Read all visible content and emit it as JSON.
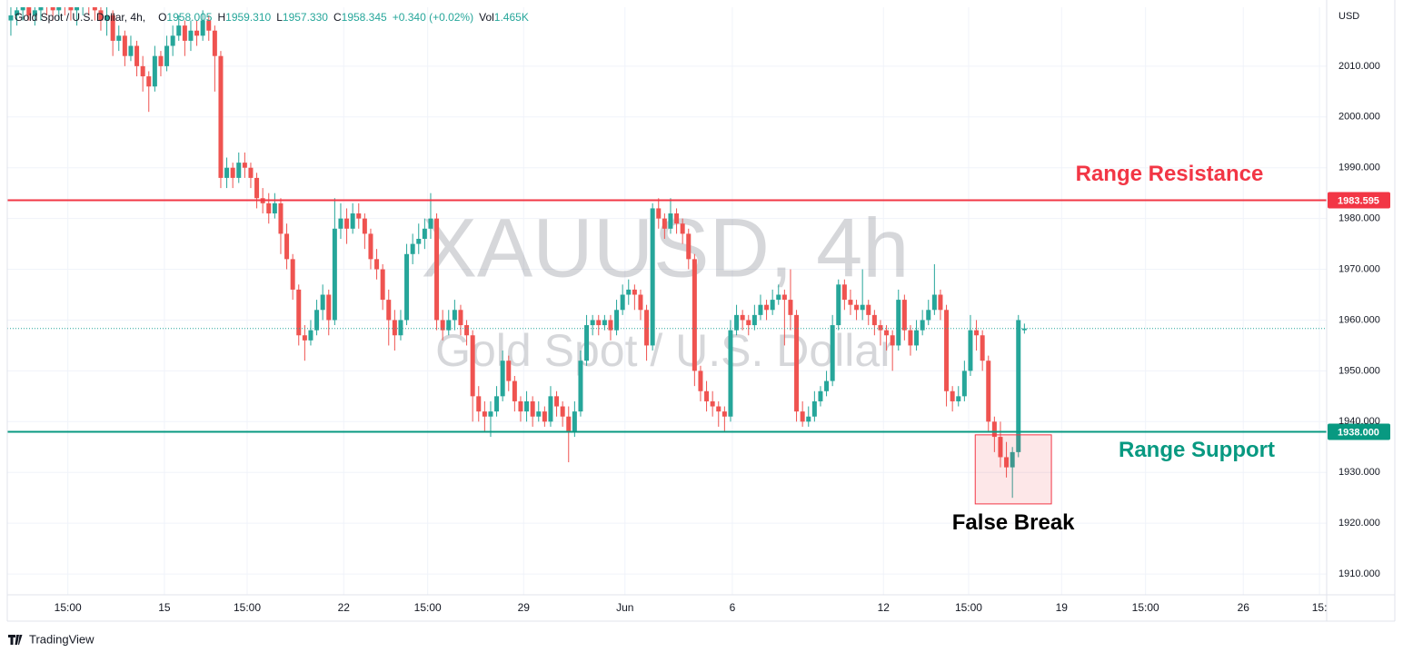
{
  "chart_data": {
    "type": "candlestick",
    "header": {
      "symbol": "Gold Spot / U.S. Dollar, 4h,",
      "items": [
        {
          "label": "O",
          "value": "1958.005"
        },
        {
          "label": "H",
          "value": "1959.310"
        },
        {
          "label": "L",
          "value": "1957.330"
        },
        {
          "label": "C",
          "value": "1958.345"
        },
        {
          "label": "",
          "value": "+0.340 (+0.02%)"
        },
        {
          "label": "Vol",
          "value": "1.465K"
        }
      ]
    },
    "watermark": {
      "title": "XAUUSD, 4h",
      "subtitle": "Gold Spot / U.S. Dollar"
    },
    "currency": "USD",
    "up_color": "#26a69a",
    "down_color": "#ef5350",
    "ohlc": [
      [
        2019,
        2022,
        2016,
        2020
      ],
      [
        2020,
        2023,
        2018,
        2021
      ],
      [
        2021,
        2024,
        2019,
        2022
      ],
      [
        2022,
        2024,
        2019,
        2020
      ],
      [
        2020,
        2023,
        2018,
        2021
      ],
      [
        2021,
        2025,
        2019,
        2023
      ],
      [
        2023,
        2025,
        2020,
        2022
      ],
      [
        2022,
        2024,
        2019,
        2021
      ],
      [
        2021,
        2024,
        2019,
        2023
      ],
      [
        2023,
        2025,
        2020,
        2022
      ],
      [
        2022,
        2024,
        2019,
        2021
      ],
      [
        2021,
        2023,
        2018,
        2022
      ],
      [
        2022,
        2025,
        2020,
        2023
      ],
      [
        2023,
        2025,
        2020,
        2022
      ],
      [
        2022,
        2024,
        2019,
        2021
      ],
      [
        2021,
        2023,
        2017,
        2019
      ],
      [
        2019,
        2022,
        2016,
        2020
      ],
      [
        2020,
        2021,
        2012,
        2015
      ],
      [
        2015,
        2018,
        2013,
        2016
      ],
      [
        2016,
        2017,
        2010,
        2012
      ],
      [
        2012,
        2016,
        2011,
        2014
      ],
      [
        2014,
        2015,
        2008,
        2010
      ],
      [
        2010,
        2012,
        2005,
        2008
      ],
      [
        2008,
        2009,
        2001,
        2006
      ],
      [
        2006,
        2014,
        2005,
        2012
      ],
      [
        2012,
        2013,
        2008,
        2010
      ],
      [
        2010,
        2016,
        2009,
        2014
      ],
      [
        2014,
        2018,
        2012,
        2016
      ],
      [
        2016,
        2020,
        2015,
        2018
      ],
      [
        2018,
        2019,
        2012,
        2015
      ],
      [
        2015,
        2019,
        2013,
        2017
      ],
      [
        2017,
        2019,
        2014,
        2016
      ],
      [
        2016,
        2021,
        2015,
        2019
      ],
      [
        2019,
        2020,
        2015,
        2017
      ],
      [
        2017,
        2018,
        2005,
        2012
      ],
      [
        2012,
        2013,
        1986,
        1988
      ],
      [
        1988,
        1992,
        1986,
        1990
      ],
      [
        1990,
        1991,
        1986,
        1988
      ],
      [
        1988,
        1993,
        1987,
        1991
      ],
      [
        1991,
        1993,
        1988,
        1990
      ],
      [
        1990,
        1991,
        1986,
        1988
      ],
      [
        1988,
        1989,
        1982,
        1984
      ],
      [
        1984,
        1986,
        1981,
        1983
      ],
      [
        1983,
        1985,
        1979,
        1981
      ],
      [
        1981,
        1985,
        1980,
        1983
      ],
      [
        1983,
        1984,
        1973,
        1977
      ],
      [
        1977,
        1979,
        1970,
        1972
      ],
      [
        1972,
        1973,
        1964,
        1966
      ],
      [
        1966,
        1967,
        1955,
        1957
      ],
      [
        1957,
        1959,
        1952,
        1956
      ],
      [
        1956,
        1960,
        1955,
        1958
      ],
      [
        1958,
        1964,
        1957,
        1962
      ],
      [
        1962,
        1967,
        1960,
        1965
      ],
      [
        1965,
        1966,
        1957,
        1960
      ],
      [
        1960,
        1984,
        1959,
        1978
      ],
      [
        1978,
        1983,
        1976,
        1980
      ],
      [
        1980,
        1982,
        1975,
        1978
      ],
      [
        1978,
        1983,
        1977,
        1981
      ],
      [
        1981,
        1983,
        1978,
        1980
      ],
      [
        1980,
        1981,
        1974,
        1977
      ],
      [
        1977,
        1978,
        1970,
        1972
      ],
      [
        1972,
        1974,
        1968,
        1970
      ],
      [
        1970,
        1971,
        1962,
        1964
      ],
      [
        1964,
        1966,
        1955,
        1960
      ],
      [
        1960,
        1962,
        1954,
        1957
      ],
      [
        1957,
        1962,
        1956,
        1960
      ],
      [
        1960,
        1975,
        1959,
        1973
      ],
      [
        1973,
        1977,
        1971,
        1975
      ],
      [
        1975,
        1979,
        1973,
        1976
      ],
      [
        1976,
        1980,
        1974,
        1978
      ],
      [
        1978,
        1985,
        1976,
        1980
      ],
      [
        1980,
        1981,
        1958,
        1960
      ],
      [
        1960,
        1962,
        1956,
        1958
      ],
      [
        1958,
        1962,
        1957,
        1960
      ],
      [
        1960,
        1964,
        1958,
        1962
      ],
      [
        1962,
        1963,
        1957,
        1959
      ],
      [
        1959,
        1960,
        1955,
        1957
      ],
      [
        1957,
        1958,
        1940,
        1945
      ],
      [
        1945,
        1947,
        1940,
        1942
      ],
      [
        1942,
        1944,
        1938,
        1941
      ],
      [
        1941,
        1944,
        1937,
        1942
      ],
      [
        1942,
        1947,
        1941,
        1945
      ],
      [
        1945,
        1954,
        1944,
        1952
      ],
      [
        1952,
        1953,
        1946,
        1948
      ],
      [
        1948,
        1949,
        1942,
        1944
      ],
      [
        1944,
        1945,
        1940,
        1942
      ],
      [
        1942,
        1946,
        1940,
        1944
      ],
      [
        1944,
        1945,
        1939,
        1941
      ],
      [
        1941,
        1944,
        1940,
        1942
      ],
      [
        1942,
        1943,
        1939,
        1940
      ],
      [
        1940,
        1947,
        1939,
        1945
      ],
      [
        1945,
        1946,
        1941,
        1943
      ],
      [
        1943,
        1944,
        1939,
        1941
      ],
      [
        1941,
        1943,
        1932,
        1938
      ],
      [
        1938,
        1944,
        1937,
        1942
      ],
      [
        1942,
        1954,
        1941,
        1952
      ],
      [
        1952,
        1961,
        1951,
        1959
      ],
      [
        1959,
        1961,
        1957,
        1960
      ],
      [
        1960,
        1961,
        1957,
        1959
      ],
      [
        1959,
        1961,
        1958,
        1960
      ],
      [
        1960,
        1961,
        1956,
        1958
      ],
      [
        1958,
        1964,
        1957,
        1962
      ],
      [
        1962,
        1967,
        1961,
        1965
      ],
      [
        1965,
        1968,
        1963,
        1966
      ],
      [
        1966,
        1967,
        1962,
        1965
      ],
      [
        1965,
        1966,
        1960,
        1962
      ],
      [
        1962,
        1963,
        1952,
        1955
      ],
      [
        1955,
        1983,
        1954,
        1982
      ],
      [
        1982,
        1984,
        1978,
        1980
      ],
      [
        1980,
        1981,
        1976,
        1978
      ],
      [
        1978,
        1984,
        1977,
        1981
      ],
      [
        1981,
        1982,
        1977,
        1979
      ],
      [
        1979,
        1980,
        1975,
        1977
      ],
      [
        1977,
        1978,
        1970,
        1972
      ],
      [
        1972,
        1973,
        1947,
        1950
      ],
      [
        1950,
        1951,
        1944,
        1946
      ],
      [
        1946,
        1948,
        1942,
        1944
      ],
      [
        1944,
        1946,
        1941,
        1943
      ],
      [
        1943,
        1944,
        1939,
        1942
      ],
      [
        1942,
        1943,
        1938,
        1941
      ],
      [
        1941,
        1960,
        1940,
        1958
      ],
      [
        1958,
        1963,
        1957,
        1961
      ],
      [
        1961,
        1962,
        1958,
        1960
      ],
      [
        1960,
        1961,
        1957,
        1959
      ],
      [
        1959,
        1963,
        1958,
        1961
      ],
      [
        1961,
        1965,
        1960,
        1963
      ],
      [
        1963,
        1964,
        1960,
        1962
      ],
      [
        1962,
        1966,
        1961,
        1964
      ],
      [
        1964,
        1967,
        1963,
        1965
      ],
      [
        1965,
        1966,
        1955,
        1964
      ],
      [
        1964,
        1970,
        1958,
        1961
      ],
      [
        1961,
        1962,
        1940,
        1942
      ],
      [
        1942,
        1944,
        1939,
        1940
      ],
      [
        1940,
        1943,
        1939,
        1941
      ],
      [
        1941,
        1946,
        1940,
        1944
      ],
      [
        1944,
        1947,
        1943,
        1946
      ],
      [
        1946,
        1950,
        1945,
        1948
      ],
      [
        1948,
        1961,
        1947,
        1959
      ],
      [
        1959,
        1968,
        1958,
        1967
      ],
      [
        1967,
        1968,
        1962,
        1964
      ],
      [
        1964,
        1966,
        1961,
        1963
      ],
      [
        1963,
        1964,
        1960,
        1962
      ],
      [
        1962,
        1970,
        1960,
        1963
      ],
      [
        1963,
        1964,
        1959,
        1961
      ],
      [
        1961,
        1962,
        1957,
        1959
      ],
      [
        1959,
        1960,
        1955,
        1958
      ],
      [
        1958,
        1959,
        1954,
        1957
      ],
      [
        1957,
        1958,
        1950,
        1955
      ],
      [
        1955,
        1966,
        1954,
        1964
      ],
      [
        1964,
        1965,
        1956,
        1958
      ],
      [
        1958,
        1959,
        1953,
        1955
      ],
      [
        1955,
        1960,
        1954,
        1958
      ],
      [
        1958,
        1962,
        1957,
        1960
      ],
      [
        1960,
        1964,
        1959,
        1962
      ],
      [
        1962,
        1971,
        1961,
        1965
      ],
      [
        1965,
        1966,
        1960,
        1962
      ],
      [
        1962,
        1963,
        1943,
        1946
      ],
      [
        1946,
        1947,
        1942,
        1944
      ],
      [
        1944,
        1947,
        1943,
        1945
      ],
      [
        1945,
        1952,
        1944,
        1950
      ],
      [
        1950,
        1961,
        1949,
        1958
      ],
      [
        1958,
        1960,
        1954,
        1957
      ],
      [
        1957,
        1958,
        1950,
        1952
      ],
      [
        1952,
        1953,
        1938,
        1940
      ],
      [
        1940,
        1941,
        1934,
        1937
      ],
      [
        1937,
        1940,
        1931,
        1933
      ],
      [
        1933,
        1936,
        1929,
        1931
      ],
      [
        1931,
        1935,
        1925,
        1934
      ],
      [
        1934,
        1961,
        1933,
        1960
      ],
      [
        1958.005,
        1959.31,
        1957.33,
        1958.345
      ]
    ],
    "xlim": [
      -0.6,
      219.4
    ],
    "xticks": [
      {
        "value": 9.5,
        "label": "15:00"
      },
      {
        "value": 25.6,
        "label": "15"
      },
      {
        "value": 39.4,
        "label": "15:00"
      },
      {
        "value": 55.5,
        "label": "22"
      },
      {
        "value": 69.5,
        "label": "15:00"
      },
      {
        "value": 85.5,
        "label": "29"
      },
      {
        "value": 102.4,
        "label": "Jun"
      },
      {
        "value": 120.3,
        "label": "6"
      },
      {
        "value": 145.5,
        "label": "12"
      },
      {
        "value": 159.7,
        "label": "15:00"
      },
      {
        "value": 175.2,
        "label": "19"
      },
      {
        "value": 189.2,
        "label": "15:00"
      },
      {
        "value": 205.5,
        "label": "26"
      },
      {
        "value": 218.2,
        "label": "15:"
      }
    ],
    "ylim": [
      1905.9,
      2021.6
    ],
    "yticks": [
      {
        "value": 1910,
        "label": "1910.000"
      },
      {
        "value": 1920,
        "label": "1920.000"
      },
      {
        "value": 1930,
        "label": "1930.000"
      },
      {
        "value": 1940,
        "label": "1940.000"
      },
      {
        "value": 1950,
        "label": "1950.000"
      },
      {
        "value": 1960,
        "label": "1960.000"
      },
      {
        "value": 1970,
        "label": "1970.000"
      },
      {
        "value": 1980,
        "label": "1980.000"
      },
      {
        "value": 1990,
        "label": "1990.000"
      },
      {
        "value": 2000,
        "label": "2000.000"
      },
      {
        "value": 2010,
        "label": "2010.000"
      }
    ],
    "grid": true,
    "hlines": [
      {
        "value": 1983.595,
        "label": "1983.595",
        "color": "#f23645",
        "annotation": "Range Resistance"
      },
      {
        "value": 1938,
        "label": "1938.000",
        "color": "#089981",
        "annotation": "Range Support"
      }
    ],
    "highlight": {
      "xlim": [
        160.8,
        173.5
      ],
      "ylim": [
        1923.8,
        1937.4
      ],
      "color": "#f23645",
      "annotation": "False Break"
    },
    "footer": "TradingView"
  }
}
